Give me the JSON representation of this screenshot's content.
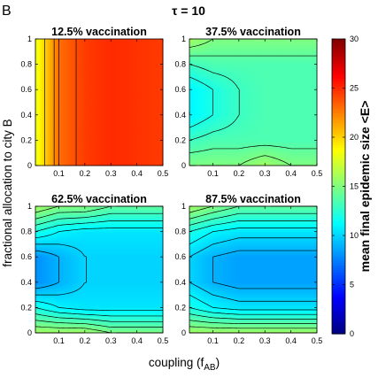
{
  "figure": {
    "panel_letter": "B",
    "title": "τ = 10"
  },
  "chart_data": {
    "type": "heatmap",
    "shared_xlabel": "coupling (f",
    "shared_xlabel_sub": "AB",
    "shared_xlabel_close": ")",
    "shared_ylabel": "fractional allocation to city B",
    "x_range": [
      0.01,
      0.5
    ],
    "y_range": [
      0,
      1
    ],
    "x_ticks": [
      0.1,
      0.2,
      0.3,
      0.4,
      0.5
    ],
    "x_tick_labels": [
      "0.1",
      "0.2",
      "0.3",
      "0.4",
      "0.5"
    ],
    "y_ticks": [
      0,
      0.2,
      0.4,
      0.6,
      0.8,
      1
    ],
    "y_tick_labels": [
      "0",
      "0.2",
      "0.4",
      "0.6",
      "0.8",
      "1"
    ],
    "colormap": "jet",
    "colorbar": {
      "label": "mean final epidemic size <E>",
      "range": [
        0,
        30
      ],
      "ticks": [
        0,
        5,
        10,
        15,
        20,
        25,
        30
      ],
      "tick_labels": [
        "0",
        "5",
        "10",
        "15",
        "20",
        "25",
        "30"
      ]
    },
    "contour_levels": [
      8,
      9,
      10,
      11,
      12,
      13,
      14,
      15,
      16,
      18,
      20,
      22,
      23,
      24,
      25
    ],
    "grid_x": [
      0.01,
      0.1,
      0.2,
      0.3,
      0.4,
      0.5
    ],
    "grid_y": [
      0,
      0.2,
      0.4,
      0.6,
      0.8,
      1
    ],
    "panels": [
      {
        "title": "12.5% vaccination",
        "z": [
          [
            18,
            23,
            24.5,
            25,
            24.8,
            24.5
          ],
          [
            18,
            23,
            24.5,
            25,
            24.8,
            24.5
          ],
          [
            18,
            23,
            24.5,
            25,
            24.8,
            24.5
          ],
          [
            18,
            23,
            24.5,
            25,
            24.8,
            24.5
          ],
          [
            18,
            23,
            24.5,
            25,
            24.8,
            24.5
          ],
          [
            18,
            23,
            24.5,
            25,
            24.8,
            24.5
          ]
        ]
      },
      {
        "title": "37.5% vaccination",
        "z": [
          [
            15,
            15,
            15,
            16,
            15,
            15
          ],
          [
            13,
            13.5,
            13.5,
            13.5,
            13.5,
            13.5
          ],
          [
            11,
            12,
            13,
            13.5,
            13.5,
            13.5
          ],
          [
            11,
            12,
            13,
            13.5,
            13.5,
            13.5
          ],
          [
            13,
            13.5,
            13.5,
            13.5,
            13.5,
            13.5
          ],
          [
            16,
            15,
            15,
            15,
            15,
            15
          ]
        ]
      },
      {
        "title": "62.5% vaccination",
        "z": [
          [
            16,
            16,
            16,
            15,
            15,
            15
          ],
          [
            12,
            11,
            10.5,
            10.5,
            10.5,
            10.5
          ],
          [
            8,
            9,
            10,
            10,
            10,
            10
          ],
          [
            8,
            9,
            10,
            10,
            10,
            10
          ],
          [
            12,
            11,
            10.5,
            10.5,
            10.5,
            10.5
          ],
          [
            16,
            15,
            15,
            14,
            14,
            14
          ]
        ]
      },
      {
        "title": "87.5% vaccination",
        "z": [
          [
            16,
            16,
            16,
            16,
            16,
            16
          ],
          [
            12,
            11,
            10.5,
            10.5,
            10.5,
            10.5
          ],
          [
            10,
            9,
            8.5,
            8.5,
            8.5,
            8.5
          ],
          [
            10,
            9,
            8.5,
            8.5,
            8.5,
            8.5
          ],
          [
            12,
            11,
            10.5,
            10.5,
            10.5,
            10.5
          ],
          [
            16,
            15,
            14,
            14,
            14,
            14
          ]
        ]
      }
    ],
    "grid": false
  }
}
